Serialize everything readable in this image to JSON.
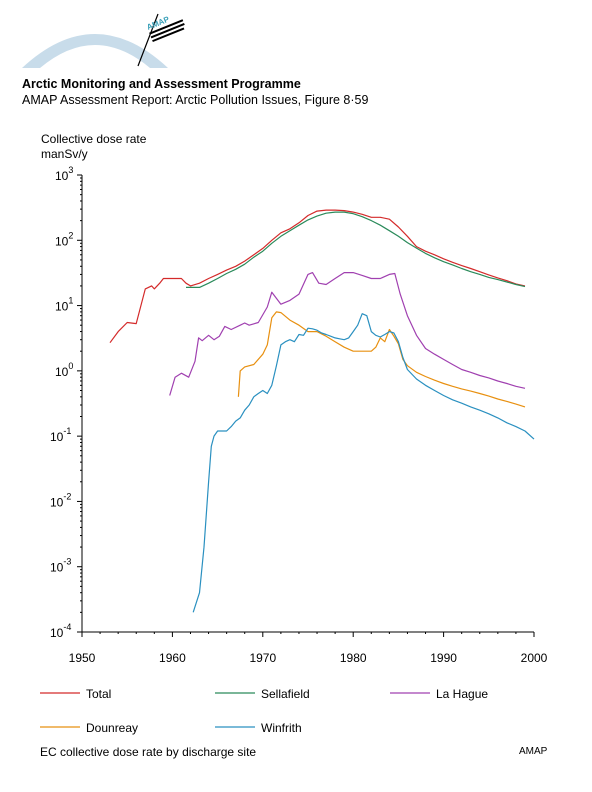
{
  "header": {
    "org": "Arctic Monitoring and Assessment Programme",
    "report": "AMAP Assessment Report: Arctic Pollution Issues, Figure 8·59"
  },
  "logo": {
    "label": "AMAP",
    "arc_color": "#c8dcea",
    "accent_color": "#3aa0b8"
  },
  "chart_data": {
    "type": "line",
    "ylabel": "Collective dose rate",
    "yunit": "manSv/y",
    "xlim": [
      1950,
      2000
    ],
    "xticks": [
      1950,
      1960,
      1970,
      1980,
      1990,
      2000
    ],
    "yscale": "log",
    "ylim": [
      0.0001,
      1000
    ],
    "yticks": [
      {
        "value": 1000,
        "base": "10",
        "exp": "3"
      },
      {
        "value": 100,
        "base": "10",
        "exp": "2"
      },
      {
        "value": 10,
        "base": "10",
        "exp": "1"
      },
      {
        "value": 1,
        "base": "10",
        "exp": "0"
      },
      {
        "value": 0.1,
        "base": "10",
        "exp": "-1"
      },
      {
        "value": 0.01,
        "base": "10",
        "exp": "-2"
      },
      {
        "value": 0.001,
        "base": "10",
        "exp": "-3"
      },
      {
        "value": 0.0001,
        "base": "10",
        "exp": "-4"
      }
    ],
    "grid": false,
    "legend_position": "bottom",
    "series": [
      {
        "name": "Total",
        "color": "#d42a2a",
        "x": [
          1953.1,
          1954,
          1955,
          1956,
          1957,
          1957.7,
          1958,
          1958.6,
          1959,
          1960,
          1961,
          1961.5,
          1962,
          1963,
          1964,
          1965,
          1966,
          1967,
          1968,
          1969,
          1970,
          1971,
          1972,
          1973,
          1974,
          1975,
          1976,
          1977,
          1978,
          1979,
          1980,
          1981,
          1982,
          1983,
          1984,
          1985,
          1986,
          1987,
          1988,
          1989,
          1990,
          1991,
          1992,
          1993,
          1994,
          1995,
          1996,
          1997,
          1998,
          1999
        ],
        "y": [
          2.7,
          4,
          5.5,
          5.3,
          18,
          20,
          18,
          22,
          26,
          26,
          26,
          22,
          20,
          22,
          26,
          30,
          35,
          40,
          48,
          60,
          75,
          100,
          130,
          150,
          185,
          240,
          280,
          290,
          290,
          285,
          270,
          250,
          225,
          225,
          210,
          160,
          115,
          80,
          68,
          60,
          52,
          46,
          41,
          37,
          33,
          29.5,
          26.5,
          24,
          21.5,
          20
        ]
      },
      {
        "name": "Sellafield",
        "color": "#2a8a5a",
        "x": [
          1961.5,
          1962,
          1963,
          1964,
          1965,
          1966,
          1967,
          1968,
          1969,
          1970,
          1971,
          1972,
          1973,
          1974,
          1975,
          1976,
          1977,
          1978,
          1979,
          1980,
          1981,
          1982,
          1983,
          1984,
          1985,
          1986,
          1987,
          1988,
          1989,
          1990,
          1991,
          1992,
          1993,
          1994,
          1995,
          1996,
          1997,
          1998,
          1999
        ],
        "y": [
          19,
          19,
          19,
          22,
          26,
          31,
          36,
          43,
          55,
          68,
          90,
          115,
          140,
          170,
          205,
          235,
          260,
          270,
          270,
          255,
          230,
          200,
          170,
          140,
          115,
          92,
          76,
          63,
          54,
          47,
          42,
          37,
          33,
          30,
          27,
          25,
          23,
          21,
          19.5
        ]
      },
      {
        "name": "La Hague",
        "color": "#a040b0",
        "x": [
          1959.7,
          1960.3,
          1961,
          1961.8,
          1962.5,
          1962.9,
          1963.3,
          1964,
          1964.6,
          1965.2,
          1965.8,
          1966.5,
          1967.5,
          1968,
          1968.5,
          1969.5,
          1970.5,
          1971,
          1972,
          1973,
          1974,
          1975,
          1975.5,
          1976.2,
          1977,
          1978,
          1979,
          1980,
          1981,
          1982,
          1983,
          1984,
          1984.6,
          1985.2,
          1986,
          1987,
          1988,
          1989,
          1990,
          1991,
          1992,
          1993,
          1994,
          1995,
          1996,
          1997,
          1998,
          1999
        ],
        "y": [
          0.42,
          0.8,
          0.92,
          0.8,
          1.4,
          3.2,
          2.9,
          3.5,
          3,
          3.4,
          4.8,
          4.3,
          5,
          5.4,
          5,
          5.5,
          9.5,
          16,
          10.5,
          12,
          15,
          30,
          32,
          22,
          21,
          26,
          32,
          32,
          29,
          26,
          26,
          30,
          31,
          15,
          7,
          3.5,
          2.2,
          1.8,
          1.5,
          1.25,
          1.05,
          0.95,
          0.85,
          0.78,
          0.7,
          0.64,
          0.58,
          0.54
        ]
      },
      {
        "name": "Dounreay",
        "color": "#e89010",
        "x": [
          1967.3,
          1967.5,
          1968,
          1969,
          1970,
          1970.5,
          1971,
          1971.5,
          1972,
          1973,
          1974,
          1975,
          1976,
          1977,
          1978,
          1979,
          1980,
          1981,
          1982,
          1982.5,
          1983,
          1983.5,
          1984,
          1984.5,
          1985,
          1985.5,
          1986,
          1987,
          1988,
          1989,
          1990,
          1991,
          1992,
          1993,
          1994,
          1995,
          1996,
          1997,
          1998,
          1999
        ],
        "y": [
          0.4,
          1,
          1.15,
          1.25,
          1.8,
          2.5,
          6.5,
          8,
          7.8,
          6,
          5,
          4,
          4,
          3.4,
          2.8,
          2.3,
          2,
          2,
          2,
          2.3,
          3.2,
          2.8,
          4.3,
          3.4,
          2.6,
          1.5,
          1.2,
          0.95,
          0.82,
          0.72,
          0.64,
          0.58,
          0.53,
          0.49,
          0.45,
          0.41,
          0.37,
          0.34,
          0.31,
          0.28
        ]
      },
      {
        "name": "Winfrith",
        "color": "#2a90c0",
        "x": [
          1962.3,
          1963,
          1963.5,
          1964,
          1964.3,
          1964.6,
          1965,
          1965.5,
          1966,
          1966.5,
          1967,
          1967.5,
          1968,
          1968.5,
          1969,
          1969.5,
          1970,
          1970.5,
          1971,
          1971.5,
          1972,
          1972.5,
          1973,
          1973.5,
          1974,
          1974.5,
          1975,
          1975.5,
          1976,
          1976.5,
          1977,
          1977.5,
          1978,
          1978.5,
          1979,
          1979.5,
          1980,
          1980.5,
          1981,
          1981.5,
          1982,
          1982.5,
          1983,
          1983.5,
          1984,
          1984.5,
          1985,
          1985.5,
          1986,
          1987,
          1988,
          1989,
          1990,
          1991,
          1992,
          1993,
          1994,
          1995,
          1996,
          1997,
          1998,
          1999,
          2000
        ],
        "y": [
          0.0002,
          0.0004,
          0.002,
          0.02,
          0.07,
          0.1,
          0.12,
          0.12,
          0.12,
          0.14,
          0.17,
          0.19,
          0.25,
          0.3,
          0.4,
          0.45,
          0.5,
          0.45,
          0.6,
          1.2,
          2.5,
          2.8,
          3,
          2.8,
          3.6,
          3.5,
          4.5,
          4.4,
          4.2,
          3.8,
          3.6,
          3.4,
          3.2,
          3.1,
          3,
          3.2,
          4,
          5,
          7.5,
          7,
          4,
          3.5,
          3.3,
          3.6,
          4,
          3.8,
          2.8,
          1.6,
          1.05,
          0.75,
          0.6,
          0.5,
          0.42,
          0.36,
          0.32,
          0.28,
          0.25,
          0.22,
          0.19,
          0.16,
          0.14,
          0.12,
          0.09
        ]
      }
    ]
  },
  "caption": {
    "text": "EC collective dose rate by discharge site",
    "credit": "AMAP"
  }
}
